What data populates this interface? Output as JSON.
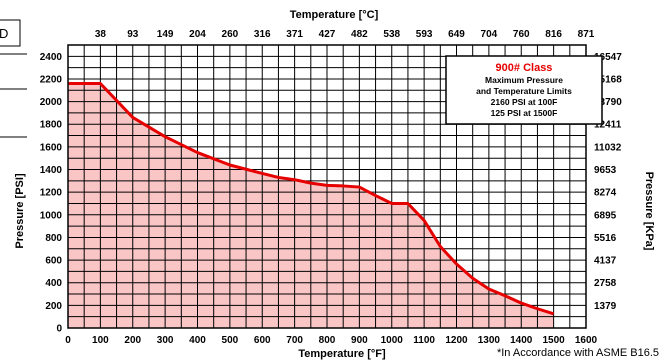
{
  "chart_data": {
    "type": "area",
    "edge_fragment": "D",
    "x_bottom_label": "Temperature [°F]",
    "x_top_label": "Temperature [°C]",
    "y_left_label": "Pressure [PSI]",
    "y_right_label": "Pressure [KPa]",
    "note": "*In Accordance with ASME B16.5",
    "x_ticks": [
      "0",
      "100",
      "200",
      "300",
      "400",
      "500",
      "600",
      "700",
      "800",
      "900",
      "1000",
      "1100",
      "1200",
      "1300",
      "1400",
      "1500",
      "1600"
    ],
    "x_top_ticks": [
      "38",
      "93",
      "149",
      "204",
      "260",
      "316",
      "371",
      "427",
      "482",
      "538",
      "593",
      "649",
      "704",
      "760",
      "816",
      "871"
    ],
    "y_ticks": [
      "0",
      "200",
      "400",
      "600",
      "800",
      "1000",
      "1200",
      "1400",
      "1600",
      "1800",
      "2000",
      "2200",
      "2400"
    ],
    "y_right_ticks": [
      "1379",
      "2758",
      "4137",
      "5516",
      "6895",
      "8274",
      "9653",
      "11032",
      "12411",
      "13790",
      "15168",
      "16547"
    ],
    "xlim": [
      0,
      1600
    ],
    "ylim": [
      0,
      2500
    ],
    "grid": true,
    "fill_color": "#f9c5c5",
    "line_color": "#e60000",
    "series": [
      {
        "x": [
          0,
          100,
          200,
          300,
          400,
          500,
          600,
          650,
          700,
          750,
          800,
          850,
          900,
          950,
          1000,
          1050,
          1100,
          1150,
          1200,
          1250,
          1300,
          1350,
          1400,
          1450,
          1500
        ],
        "y": [
          2160,
          2160,
          1860,
          1690,
          1550,
          1440,
          1365,
          1330,
          1310,
          1280,
          1260,
          1255,
          1245,
          1170,
          1100,
          1100,
          950,
          720,
          565,
          440,
          345,
          285,
          220,
          170,
          125
        ]
      }
    ],
    "legend": {
      "title": "900# Class",
      "lines": [
        "Maximum Pressure",
        "and Temperature Limits",
        "2160 PSI at 100F",
        "125 PSI at 1500F"
      ]
    }
  }
}
